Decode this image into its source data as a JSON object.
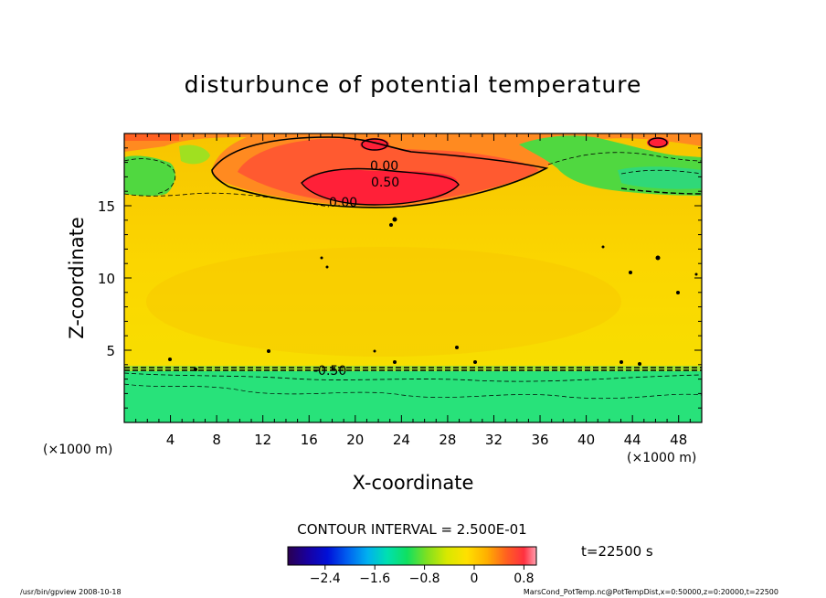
{
  "chart_data": {
    "type": "heatmap",
    "title": "disturbunce of potential temperature",
    "xlabel": "X-coordinate",
    "ylabel": "Z-coordinate",
    "x_unit": "(×1000 m)",
    "x_ticks": [
      4,
      8,
      12,
      16,
      20,
      24,
      28,
      32,
      36,
      40,
      44,
      48
    ],
    "y_ticks": [
      5,
      10,
      15
    ],
    "xlim": [
      0,
      50
    ],
    "ylim": [
      0,
      20
    ],
    "contour_interval_text": "CONTOUR INTERVAL = 2.500E-01",
    "contour_labels": [
      "0.00",
      "0.50",
      "0.00",
      "-0.50"
    ],
    "time_text": "t=22500 s",
    "colorbar": {
      "min": -3.0,
      "max": 1.0,
      "ticks": [
        "−2.4",
        "−1.6",
        "−0.8",
        "0",
        "0.8"
      ],
      "tick_values": [
        -2.4,
        -1.6,
        -0.8,
        0,
        0.8
      ]
    },
    "regions": [
      {
        "name": "lower-green-layer",
        "z_range": [
          0,
          3.8
        ],
        "value": -1.3
      },
      {
        "name": "main-yellow-body",
        "z_range": [
          3.8,
          15.2
        ],
        "value": 0.1
      },
      {
        "name": "upper-warm-band",
        "z_range": [
          15.2,
          20
        ],
        "value": 0.55
      },
      {
        "name": "core-maximum",
        "x_range": [
          16,
          28
        ],
        "z_range": [
          15.6,
          17.3
        ],
        "value": 0.85
      },
      {
        "name": "upper-left-green",
        "x_range": [
          0,
          4
        ],
        "z_range": [
          15.8,
          18.8
        ],
        "value": -0.9
      },
      {
        "name": "upper-right-green",
        "x_range": [
          42,
          50
        ],
        "z_range": [
          15.8,
          19.0
        ],
        "value": -0.9
      }
    ]
  },
  "footer": {
    "left": "/usr/bin/gpview   2008-10-18",
    "right": "MarsCond_PotTemp.nc@PotTempDist,x=0:50000,z=0:20000,t=22500"
  }
}
